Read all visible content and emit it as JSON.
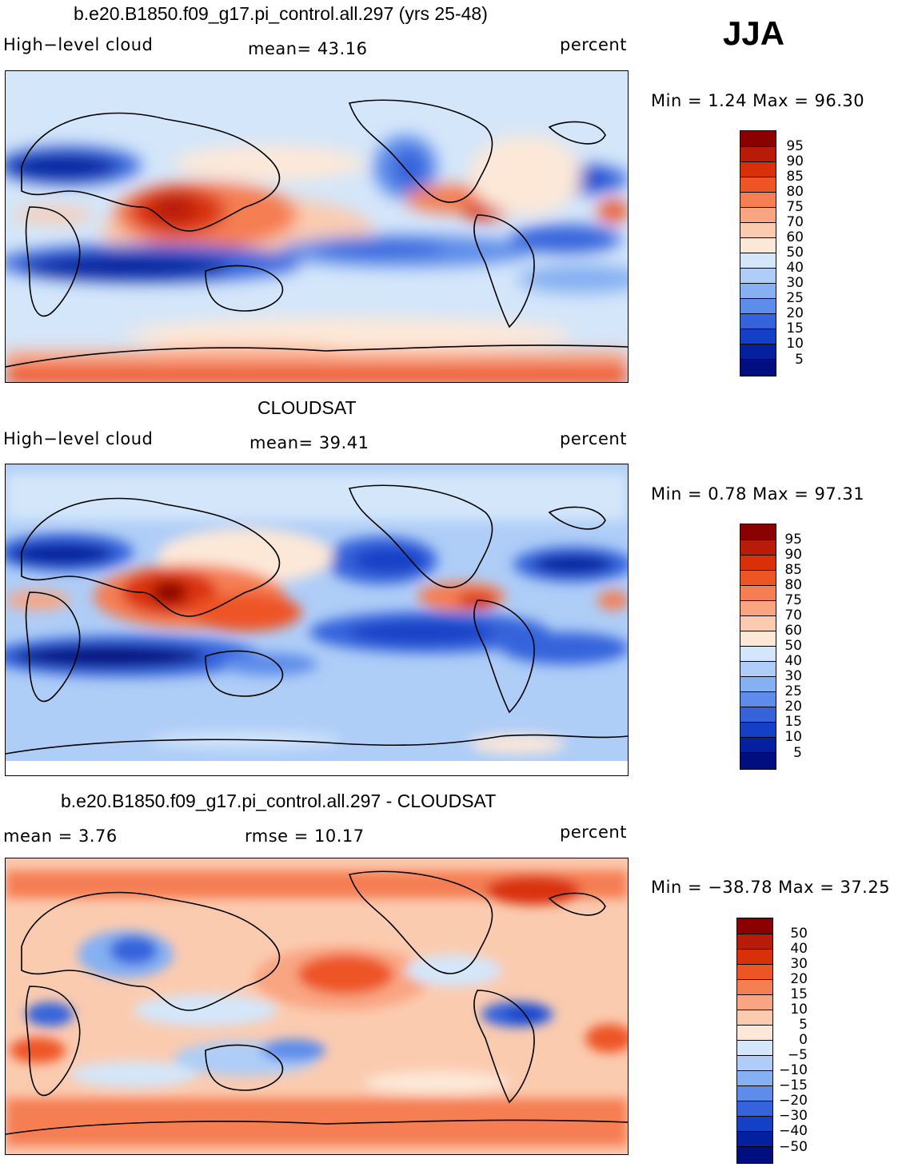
{
  "season": "JJA",
  "panels": [
    {
      "title": "b.e20.B1850.f09_g17.pi_control.all.297 (yrs 25-48)",
      "left_label": "High−level cloud",
      "center_label": "mean=   43.16",
      "right_label": "percent",
      "minmax": "Min =    1.24  Max =   96.30",
      "colorbar": {
        "labels": [
          "95",
          "90",
          "85",
          "80",
          "75",
          "70",
          "60",
          "50",
          "40",
          "30",
          "25",
          "20",
          "15",
          "10",
          "5"
        ],
        "colors": [
          "#8b0000",
          "#b81b08",
          "#d9300a",
          "#ee5525",
          "#f57e52",
          "#f9a582",
          "#fbcbb0",
          "#fde8d8",
          "#d4e6fa",
          "#aecdf7",
          "#85b0f2",
          "#5d8cea",
          "#3563dc",
          "#1440c6",
          "#05209e",
          "#000e80"
        ]
      }
    },
    {
      "title": "CLOUDSAT",
      "left_label": "High−level cloud",
      "center_label": "mean=   39.41",
      "right_label": "percent",
      "minmax": "Min =    0.78  Max =   97.31",
      "colorbar": {
        "labels": [
          "95",
          "90",
          "85",
          "80",
          "75",
          "70",
          "60",
          "50",
          "40",
          "30",
          "25",
          "20",
          "15",
          "10",
          "5"
        ],
        "colors": [
          "#8b0000",
          "#b81b08",
          "#d9300a",
          "#ee5525",
          "#f57e52",
          "#f9a582",
          "#fbcbb0",
          "#fde8d8",
          "#d4e6fa",
          "#aecdf7",
          "#85b0f2",
          "#5d8cea",
          "#3563dc",
          "#1440c6",
          "#05209e",
          "#000e80"
        ]
      }
    },
    {
      "title": "b.e20.B1850.f09_g17.pi_control.all.297 - CLOUDSAT",
      "left_label": "mean =     3.76",
      "center_label": "rmse =    10.17",
      "right_label": "percent",
      "minmax": "Min = −38.78  Max =   37.25",
      "colorbar": {
        "labels": [
          "50",
          "40",
          "30",
          "20",
          "15",
          "10",
          "5",
          "0",
          "−5",
          "−10",
          "−15",
          "−20",
          "−30",
          "−40",
          "−50"
        ],
        "colors": [
          "#8b0000",
          "#b81b08",
          "#d9300a",
          "#ee5525",
          "#f57e52",
          "#f9a582",
          "#fbcbb0",
          "#fde8d8",
          "#d4e6fa",
          "#aecdf7",
          "#85b0f2",
          "#5d8cea",
          "#3563dc",
          "#1440c6",
          "#05209e",
          "#000e80"
        ]
      }
    }
  ]
}
